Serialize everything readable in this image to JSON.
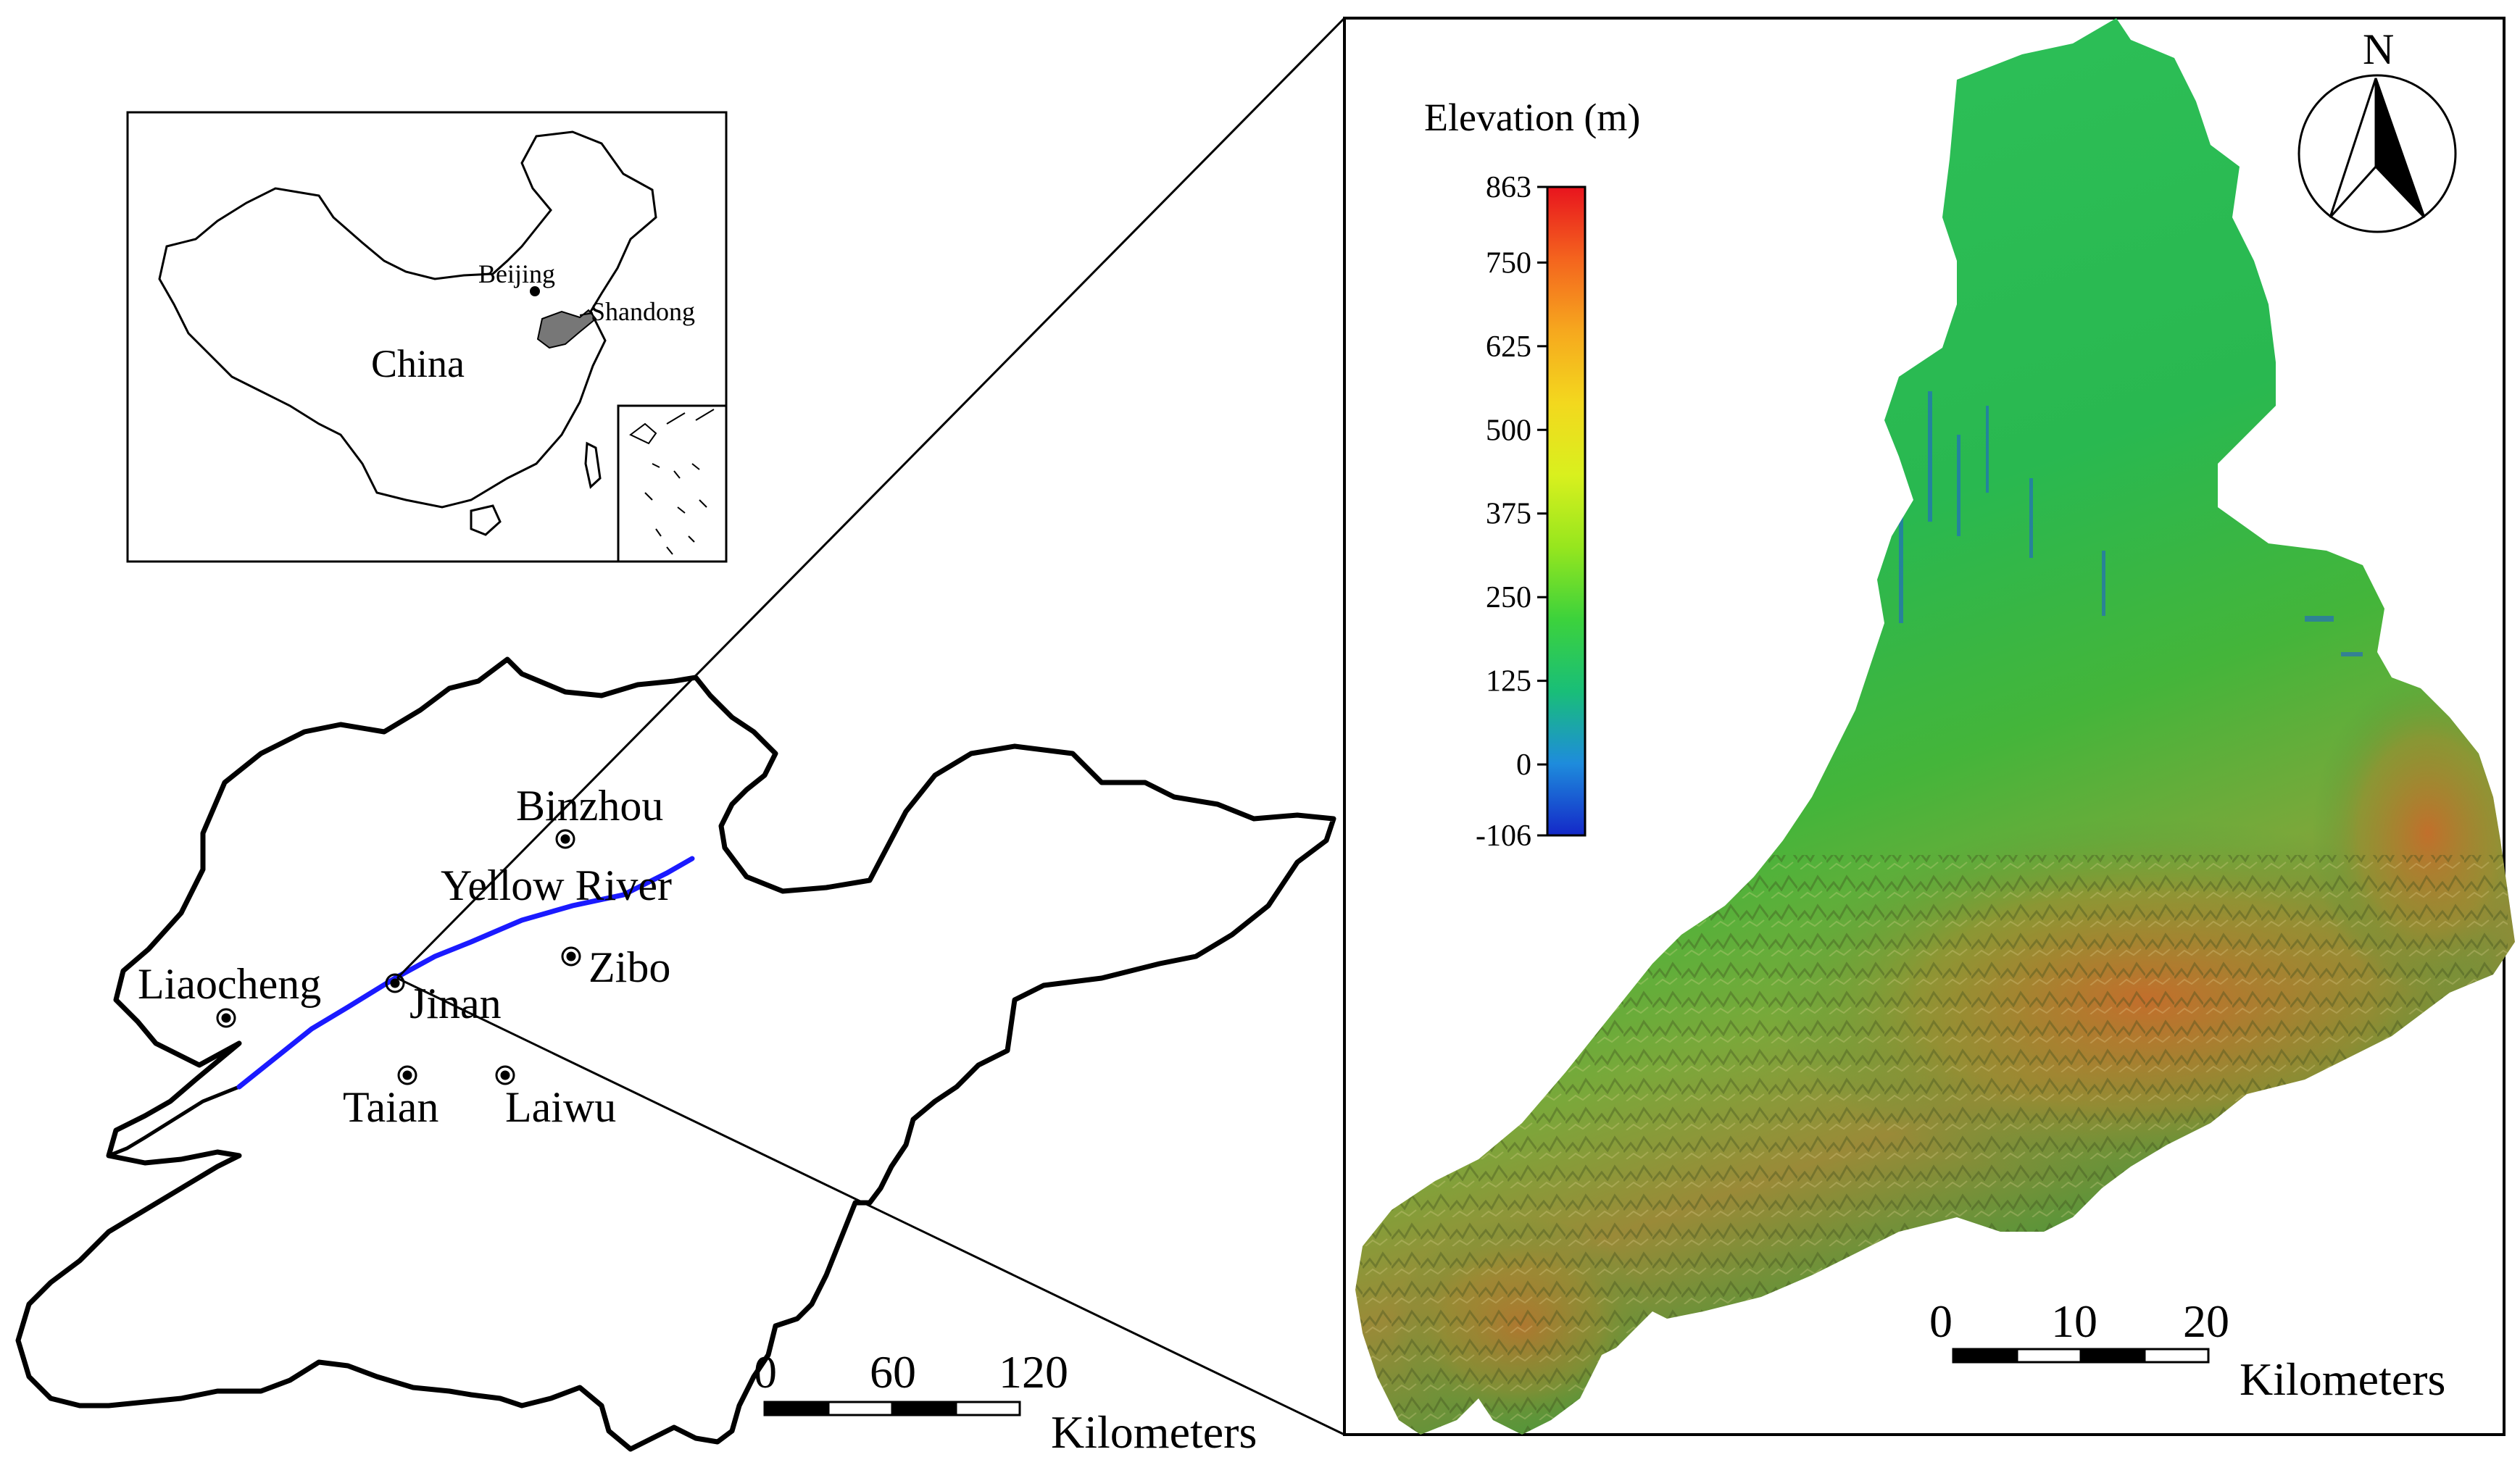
{
  "inset_map": {
    "country_label": "China",
    "capital_label": "Beijing",
    "province_label": "Shandong",
    "province_fill": "#777777"
  },
  "province_map": {
    "cities": [
      {
        "name": "Binzhou"
      },
      {
        "name": "Liaocheng"
      },
      {
        "name": "Jinan"
      },
      {
        "name": "Zibo"
      },
      {
        "name": "Taian"
      },
      {
        "name": "Laiwu"
      }
    ],
    "river_label": "Yellow River",
    "river_color": "#1a1aff",
    "scale_bar": {
      "ticks": [
        "0",
        "60",
        "120"
      ],
      "unit": "Kilometers"
    }
  },
  "elevation_map": {
    "legend_title": "Elevation (m)",
    "legend_ticks": [
      "863",
      "750",
      "625",
      "500",
      "375",
      "250",
      "125",
      "0",
      "-106"
    ],
    "color_ramp": [
      "#e8141e",
      "#f4641e",
      "#f6a81e",
      "#f3d81e",
      "#d9f01e",
      "#96e61e",
      "#3cd23c",
      "#19be78",
      "#1e8cdc",
      "#1428c8"
    ],
    "north_label": "N",
    "scale_bar": {
      "ticks": [
        "0",
        "10",
        "20"
      ],
      "unit": "Kilometers"
    }
  }
}
